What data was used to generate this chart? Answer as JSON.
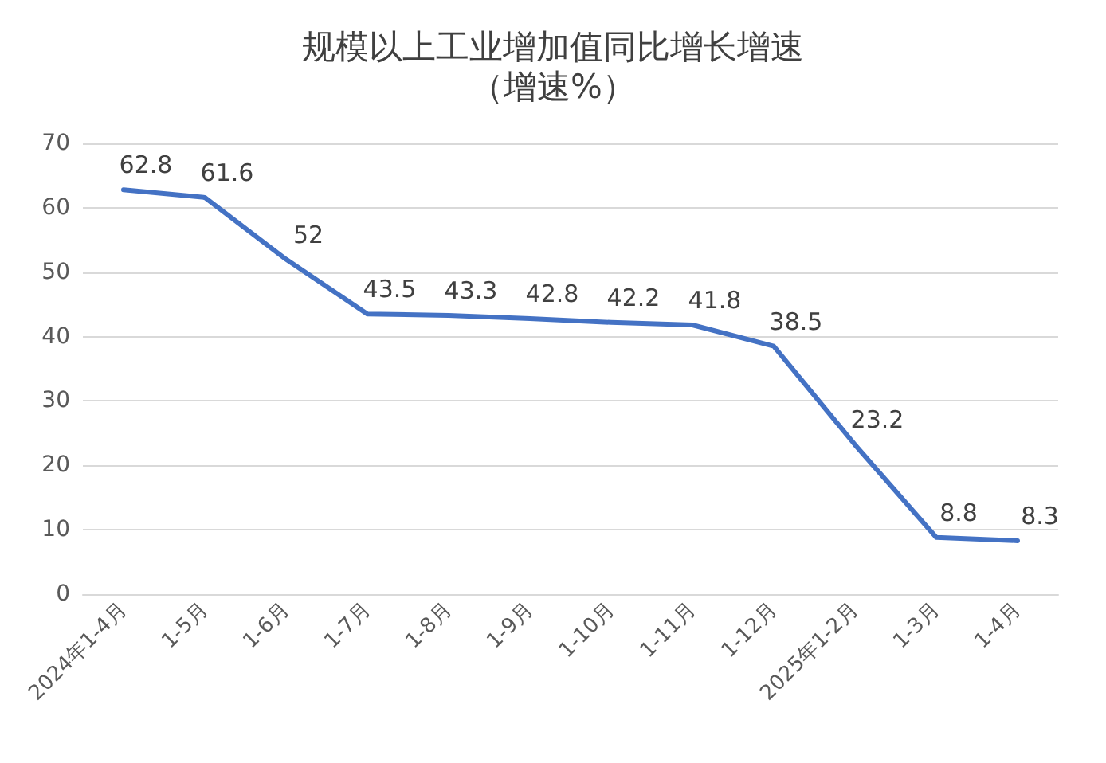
{
  "chart_data": {
    "type": "line",
    "title": "规模以上工业增加值同比增长增速",
    "subtitle": "（增速%）",
    "categories": [
      "2024年1-4月",
      "1-5月",
      "1-6月",
      "1-7月",
      "1-8月",
      "1-9月",
      "1-10月",
      "1-11月",
      "1-12月",
      "2025年1-2月",
      "1-3月",
      "1-4月"
    ],
    "values": [
      62.8,
      61.6,
      52,
      43.5,
      43.3,
      42.8,
      42.2,
      41.8,
      38.5,
      23.2,
      8.8,
      8.3
    ],
    "color": "#4472c4",
    "ylim": [
      0,
      70
    ],
    "yticks": [
      0,
      10,
      20,
      30,
      40,
      50,
      60,
      70
    ],
    "grid": "y",
    "data_labels": true,
    "marker": "none",
    "line_style": "solid"
  }
}
